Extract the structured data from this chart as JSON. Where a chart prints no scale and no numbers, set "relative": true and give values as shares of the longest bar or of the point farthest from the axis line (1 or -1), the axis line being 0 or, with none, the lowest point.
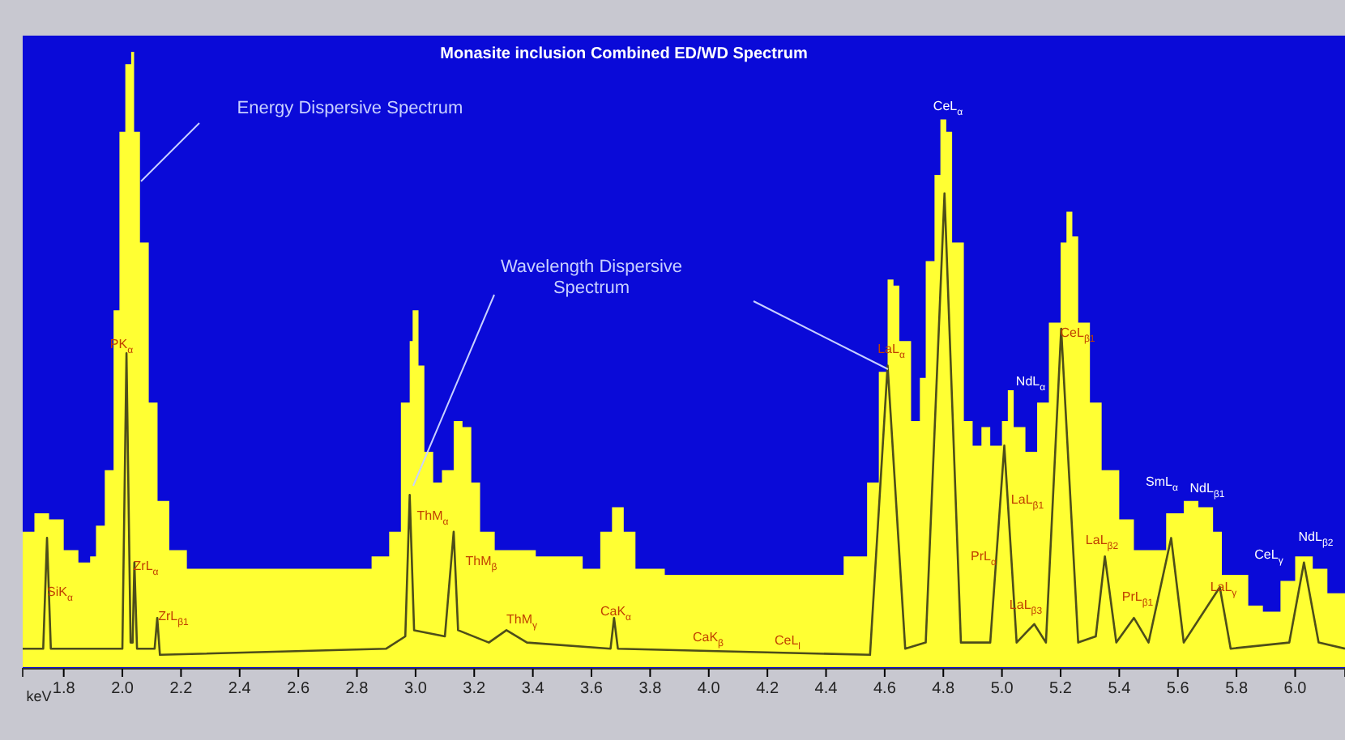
{
  "chart_data": {
    "type": "line",
    "title": "Monasite inclusion Combined ED/WD Spectrum",
    "xlabel": "keV",
    "relative": true,
    "grid": false,
    "xlim": [
      1.66,
      6.17
    ],
    "xticks": [
      1.8,
      {
        "value": 2,
        "label": "2.0"
      },
      2.2,
      2.4,
      2.6,
      2.8,
      {
        "value": 3,
        "label": "3.0"
      },
      3.2,
      3.4,
      3.6,
      3.8,
      {
        "value": 4,
        "label": "4.0"
      },
      4.2,
      4.4,
      4.6,
      4.8,
      {
        "value": 5,
        "label": "5.0"
      },
      5.2,
      5.4,
      5.6,
      5.8,
      {
        "value": 6,
        "label": "6.0"
      }
    ],
    "series": [
      {
        "type": "area",
        "color": "#ffff33",
        "x": [
          1.66,
          1.7,
          1.75,
          1.8,
          1.85,
          1.89,
          1.91,
          1.94,
          1.97,
          1.99,
          2.01,
          2.03,
          2.04,
          2.06,
          2.09,
          2.12,
          2.16,
          2.22,
          2.41,
          2.69,
          2.85,
          2.91,
          2.95,
          2.98,
          2.99,
          3.01,
          3.03,
          3.06,
          3.09,
          3.13,
          3.16,
          3.19,
          3.22,
          3.27,
          3.41,
          3.57,
          3.63,
          3.67,
          3.71,
          3.75,
          3.85,
          4.01,
          4.18,
          4.35,
          4.46,
          4.54,
          4.58,
          4.61,
          4.63,
          4.65,
          4.69,
          4.72,
          4.74,
          4.77,
          4.79,
          4.81,
          4.83,
          4.87,
          4.9,
          4.93,
          4.96,
          5.0,
          5.02,
          5.04,
          5.08,
          5.12,
          5.16,
          5.2,
          5.22,
          5.24,
          5.26,
          5.3,
          5.34,
          5.4,
          5.45,
          5.51,
          5.56,
          5.62,
          5.67,
          5.72,
          5.75,
          5.84,
          5.89,
          5.95,
          6.0,
          6.06,
          6.11,
          6.17
        ],
        "values": [
          0.22,
          0.25,
          0.24,
          0.19,
          0.17,
          0.18,
          0.23,
          0.32,
          0.58,
          0.87,
          0.98,
          1,
          0.87,
          0.69,
          0.43,
          0.27,
          0.19,
          0.16,
          0.16,
          0.16,
          0.18,
          0.22,
          0.43,
          0.53,
          0.58,
          0.49,
          0.35,
          0.3,
          0.32,
          0.4,
          0.39,
          0.3,
          0.22,
          0.19,
          0.18,
          0.16,
          0.22,
          0.26,
          0.22,
          0.16,
          0.15,
          0.15,
          0.15,
          0.15,
          0.18,
          0.3,
          0.48,
          0.63,
          0.62,
          0.53,
          0.4,
          0.47,
          0.66,
          0.8,
          0.89,
          0.87,
          0.69,
          0.4,
          0.36,
          0.39,
          0.36,
          0.4,
          0.45,
          0.39,
          0.35,
          0.43,
          0.56,
          0.69,
          0.74,
          0.7,
          0.56,
          0.43,
          0.32,
          0.24,
          0.19,
          0.19,
          0.25,
          0.27,
          0.26,
          0.22,
          0.15,
          0.1,
          0.09,
          0.14,
          0.18,
          0.16,
          0.12,
          0.11
        ]
      },
      {
        "color": "#4d4d1a",
        "x": [
          1.66,
          1.73,
          1.743,
          1.756,
          2.0,
          2.014,
          2.028,
          2.035,
          2.041,
          2.05,
          2.11,
          2.119,
          2.128,
          2.9,
          2.965,
          2.98,
          2.995,
          3.1,
          3.13,
          3.145,
          3.25,
          3.31,
          3.38,
          3.665,
          3.677,
          3.69,
          4.55,
          4.61,
          4.67,
          4.74,
          4.804,
          4.86,
          4.96,
          5.008,
          5.05,
          5.11,
          5.15,
          5.202,
          5.26,
          5.32,
          5.351,
          5.39,
          5.45,
          5.5,
          5.577,
          5.62,
          5.743,
          5.78,
          5.98,
          6.03,
          6.08,
          6.17
        ],
        "values": [
          0.03,
          0.03,
          0.21,
          0.03,
          0.03,
          0.51,
          0.04,
          0.04,
          0.17,
          0.03,
          0.03,
          0.08,
          0.02,
          0.03,
          0.05,
          0.28,
          0.06,
          0.05,
          0.22,
          0.06,
          0.04,
          0.06,
          0.04,
          0.03,
          0.08,
          0.03,
          0.02,
          0.49,
          0.03,
          0.04,
          0.77,
          0.04,
          0.04,
          0.36,
          0.04,
          0.07,
          0.04,
          0.55,
          0.04,
          0.05,
          0.18,
          0.04,
          0.08,
          0.04,
          0.21,
          0.04,
          0.13,
          0.03,
          0.04,
          0.17,
          0.04,
          0.03
        ]
      }
    ],
    "annotations": [
      "Energy Dispersive Spectrum",
      "Wavelength Dispersive\nSpectrum",
      "SiK$_{α}$",
      "PK$_{α}$",
      "ZrL$_{α}$",
      "ZrL$_{β1}$",
      "ThM$_{α}$",
      "ThM$_{β}$",
      "ThM$_{γ}$",
      "CaK$_{α}$",
      "CaK$_{β}$",
      "CeL$_{l}$",
      "LaL$_{α}$",
      "CeL$_{α}$",
      "NdL$_{α}$",
      "CeL$_{β1}$",
      "LaL$_{β1}$",
      "PrL$_{α}$",
      "LaL$_{β3}$",
      "LaL$_{β2}$",
      "PrL$_{β1}$",
      "SmL$_{α}$",
      "NdL$_{β1}$",
      "LaL$_{γ}$",
      "CeL$_{γ}$",
      "NdL$_{β2}$"
    ]
  }
}
